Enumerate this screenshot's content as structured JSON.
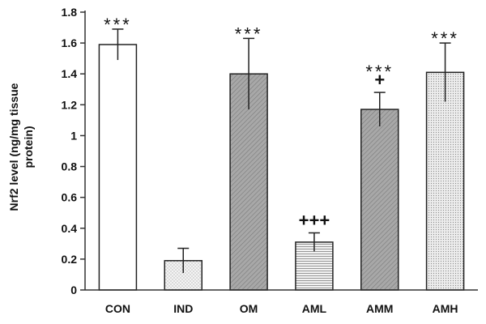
{
  "chart_data": {
    "type": "bar",
    "categories": [
      "CON",
      "IND",
      "OM",
      "AML",
      "AMM",
      "AMH"
    ],
    "values": [
      1.59,
      0.19,
      1.4,
      0.31,
      1.17,
      1.41
    ],
    "errors": [
      0.1,
      0.08,
      0.23,
      0.06,
      0.11,
      0.19
    ],
    "ylabel_lines": [
      "Nrf2 level (ng/mg tissue",
      "protein)"
    ],
    "xlabel": "",
    "ylim": [
      0,
      1.8
    ],
    "yticks": [
      "0",
      "0.2",
      "0.4",
      "0.6",
      "0.8",
      "1",
      "1.2",
      "1.4",
      "1.6",
      "1.8"
    ],
    "significance": [
      [
        "***"
      ],
      [],
      [
        "***"
      ],
      [
        "+++"
      ],
      [
        "***",
        "+"
      ],
      [
        "***"
      ]
    ],
    "bar_fills": [
      "#ffffff",
      "pattern-dots",
      "pattern-hatch-dark",
      "pattern-horizontal",
      "pattern-hatch-dark",
      "pattern-dots-fine"
    ],
    "grid": false,
    "legend": "none"
  }
}
